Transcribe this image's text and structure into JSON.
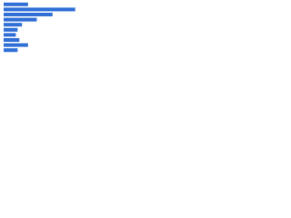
{
  "chart_data": {
    "type": "bar",
    "orientation": "horizontal",
    "categories": [
      null,
      null,
      null,
      null,
      null,
      null,
      null,
      null,
      null,
      null
    ],
    "values": [
      28,
      82,
      56,
      38,
      21,
      16,
      14,
      18,
      28,
      16
    ],
    "color": "#2f6fd6",
    "xlim": [
      0,
      100
    ]
  }
}
